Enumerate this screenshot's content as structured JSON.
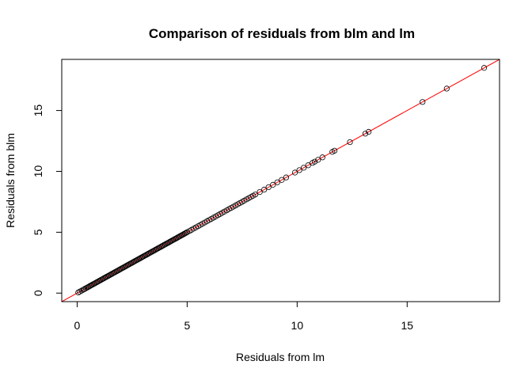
{
  "chart_data": {
    "type": "scatter",
    "title": "Comparison of residuals from blm and lm",
    "xlabel": "Residuals from lm",
    "ylabel": "Residuals from blm",
    "xlim": [
      -0.7,
      19.2
    ],
    "ylim": [
      -0.7,
      19.2
    ],
    "xticks": [
      0,
      5,
      10,
      15
    ],
    "yticks": [
      0,
      5,
      10,
      15
    ],
    "xtick_labels": [
      "0",
      "5",
      "10",
      "15"
    ],
    "ytick_labels": [
      "0",
      "5",
      "10",
      "15"
    ],
    "grid": false,
    "point_color": "#000000",
    "reference_line": {
      "type": "y=x",
      "intercept": 0,
      "slope": 1,
      "color": "#ff0000"
    },
    "series": [
      {
        "x": [
          0.05,
          0.12,
          0.2,
          0.28,
          0.33,
          0.4,
          0.45,
          0.5,
          0.55,
          0.6,
          0.65,
          0.7,
          0.75,
          0.8,
          0.85,
          0.9,
          0.95,
          1.0,
          1.05,
          1.1,
          1.15,
          1.2,
          1.25,
          1.3,
          1.35,
          1.4,
          1.45,
          1.5,
          1.55,
          1.6,
          1.65,
          1.7,
          1.75,
          1.8,
          1.85,
          1.9,
          1.95,
          2.0,
          2.05,
          2.1,
          2.15,
          2.2,
          2.25,
          2.3,
          2.35,
          2.4,
          2.45,
          2.5,
          2.55,
          2.6,
          2.65,
          2.7,
          2.75,
          2.8,
          2.85,
          2.9,
          2.95,
          3.0,
          3.05,
          3.1,
          3.15,
          3.2,
          3.25,
          3.3,
          3.35,
          3.4,
          3.45,
          3.5,
          3.55,
          3.6,
          3.65,
          3.7,
          3.75,
          3.8,
          3.85,
          3.9,
          3.95,
          4.0,
          4.05,
          4.1,
          4.15,
          4.2,
          4.25,
          4.3,
          4.35,
          4.4,
          4.45,
          4.5,
          4.55,
          4.6,
          4.65,
          4.7,
          4.75,
          4.8,
          4.85,
          4.9,
          4.95,
          5.0,
          5.1,
          5.2,
          5.3,
          5.4,
          5.5,
          5.6,
          5.7,
          5.8,
          5.9,
          6.0,
          6.1,
          6.2,
          6.3,
          6.4,
          6.5,
          6.6,
          6.7,
          6.8,
          6.9,
          7.0,
          7.1,
          7.2,
          7.3,
          7.4,
          7.5,
          7.6,
          7.7,
          7.8,
          7.9,
          8.0,
          8.1,
          8.3,
          8.5,
          8.7,
          8.9,
          9.1,
          9.3,
          9.5,
          9.9,
          10.1,
          10.3,
          10.5,
          10.7,
          10.8,
          10.95,
          11.15,
          11.6,
          11.7,
          12.4,
          13.1,
          13.25,
          15.7,
          16.8,
          18.5
        ],
        "y": [
          0.05,
          0.12,
          0.2,
          0.28,
          0.33,
          0.4,
          0.45,
          0.5,
          0.55,
          0.6,
          0.65,
          0.7,
          0.75,
          0.8,
          0.85,
          0.9,
          0.95,
          1.0,
          1.05,
          1.1,
          1.15,
          1.2,
          1.25,
          1.3,
          1.35,
          1.4,
          1.45,
          1.5,
          1.55,
          1.6,
          1.65,
          1.7,
          1.75,
          1.8,
          1.85,
          1.9,
          1.95,
          2.0,
          2.05,
          2.1,
          2.15,
          2.2,
          2.25,
          2.3,
          2.35,
          2.4,
          2.45,
          2.5,
          2.55,
          2.6,
          2.65,
          2.7,
          2.75,
          2.8,
          2.85,
          2.9,
          2.95,
          3.0,
          3.05,
          3.1,
          3.15,
          3.2,
          3.25,
          3.3,
          3.35,
          3.4,
          3.45,
          3.5,
          3.55,
          3.6,
          3.65,
          3.7,
          3.75,
          3.8,
          3.85,
          3.9,
          3.95,
          4.0,
          4.05,
          4.1,
          4.15,
          4.2,
          4.25,
          4.3,
          4.35,
          4.4,
          4.45,
          4.5,
          4.55,
          4.6,
          4.65,
          4.7,
          4.75,
          4.8,
          4.85,
          4.9,
          4.95,
          5.0,
          5.1,
          5.2,
          5.3,
          5.4,
          5.5,
          5.6,
          5.7,
          5.8,
          5.9,
          6.0,
          6.1,
          6.2,
          6.3,
          6.4,
          6.5,
          6.6,
          6.7,
          6.8,
          6.9,
          7.0,
          7.1,
          7.2,
          7.3,
          7.4,
          7.5,
          7.6,
          7.7,
          7.8,
          7.9,
          8.0,
          8.1,
          8.3,
          8.5,
          8.7,
          8.9,
          9.1,
          9.3,
          9.5,
          9.9,
          10.1,
          10.3,
          10.5,
          10.7,
          10.8,
          10.95,
          11.15,
          11.6,
          11.7,
          12.4,
          13.1,
          13.25,
          15.7,
          16.8,
          18.5
        ]
      }
    ]
  }
}
